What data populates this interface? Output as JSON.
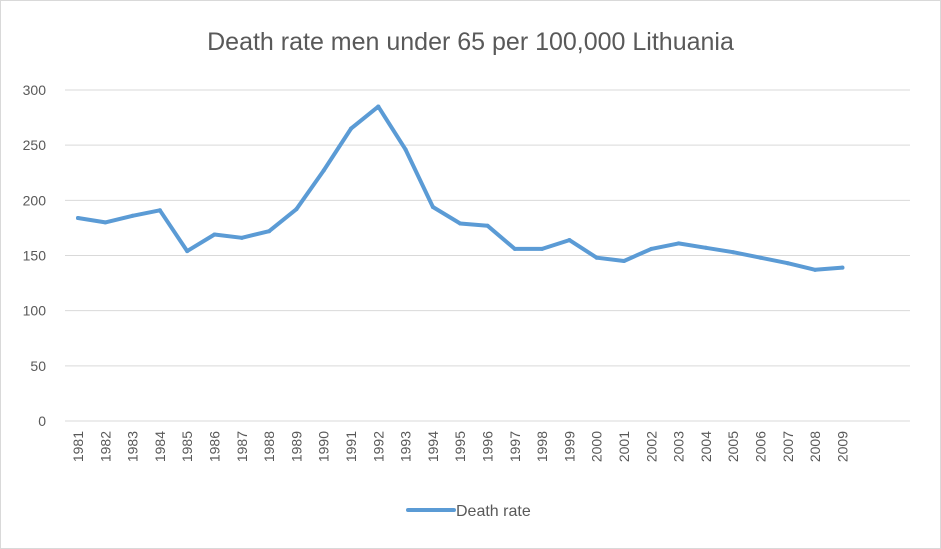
{
  "chart_data": {
    "type": "line",
    "title": "Death rate men under 65 per 100,000 Lithuania",
    "xlabel": "",
    "ylabel": "",
    "x": [
      "1981",
      "1982",
      "1983",
      "1984",
      "1985",
      "1986",
      "1987",
      "1988",
      "1989",
      "1990",
      "1991",
      "1992",
      "1993",
      "1994",
      "1995",
      "1996",
      "1997",
      "1998",
      "1999",
      "2000",
      "2001",
      "2002",
      "2003",
      "2004",
      "2005",
      "2006",
      "2007",
      "2008",
      "2009"
    ],
    "series": [
      {
        "name": "Death rate",
        "values": [
          184,
          180,
          186,
          191,
          154,
          169,
          166,
          172,
          192,
          227,
          265,
          285,
          246,
          194,
          179,
          177,
          156,
          156,
          164,
          148,
          145,
          156,
          161,
          157,
          153,
          148,
          143,
          137,
          139
        ]
      }
    ],
    "ylim": [
      0,
      300
    ],
    "yticks": [
      "0",
      "50",
      "100",
      "150",
      "200",
      "250",
      "300"
    ],
    "grid": true,
    "legend_position": "bottom",
    "colors": {
      "line": "#5b9bd5",
      "grid": "#d9d9d9",
      "text": "#595959"
    }
  }
}
